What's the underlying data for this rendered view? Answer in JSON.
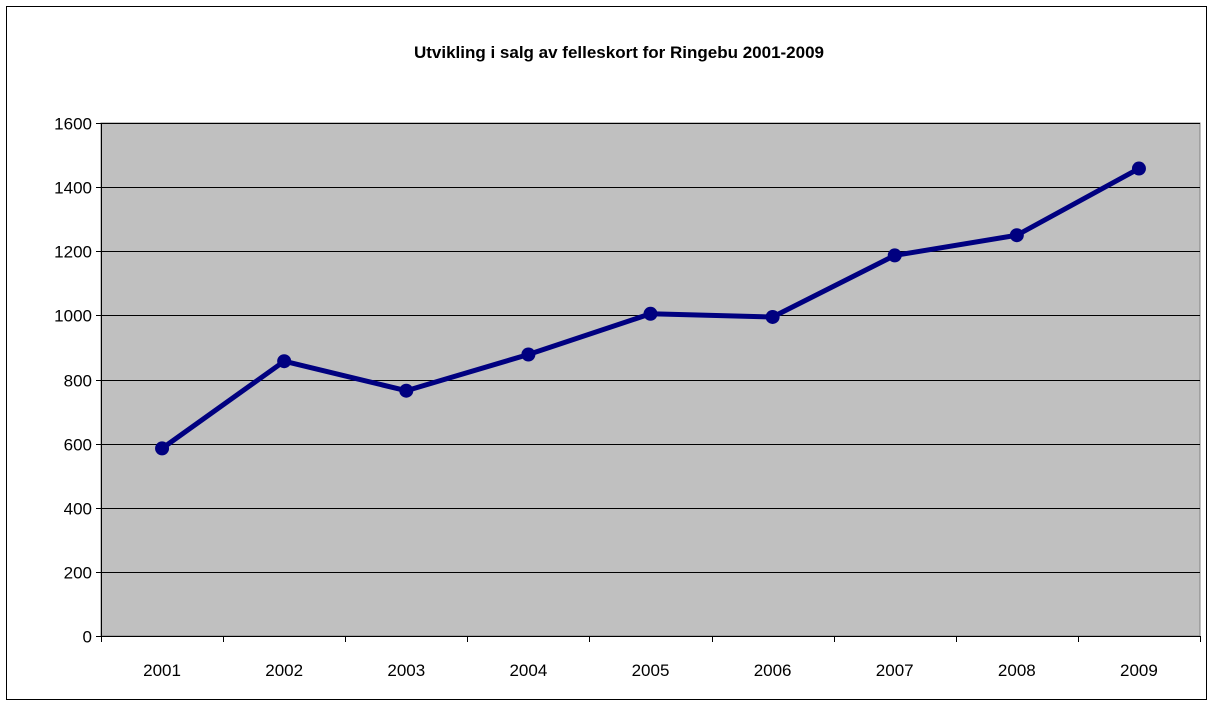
{
  "chart_data": {
    "type": "line",
    "title": "Utvikling i salg av felleskort for Ringebu 2001-2009",
    "xlabel": "",
    "ylabel": "",
    "categories": [
      "2001",
      "2002",
      "2003",
      "2004",
      "2005",
      "2006",
      "2007",
      "2008",
      "2009"
    ],
    "series": [
      {
        "values": [
          585,
          857,
          765,
          878,
          1005,
          995,
          1187,
          1250,
          1458
        ]
      }
    ],
    "ylim": [
      0,
      1600
    ],
    "yticks": [
      0,
      200,
      400,
      600,
      800,
      1000,
      1200,
      1400,
      1600
    ],
    "grid": true,
    "legend": "none",
    "colors": {
      "line": "#000080",
      "plot_background": "#c0c0c0",
      "gridline": "#000000"
    }
  }
}
